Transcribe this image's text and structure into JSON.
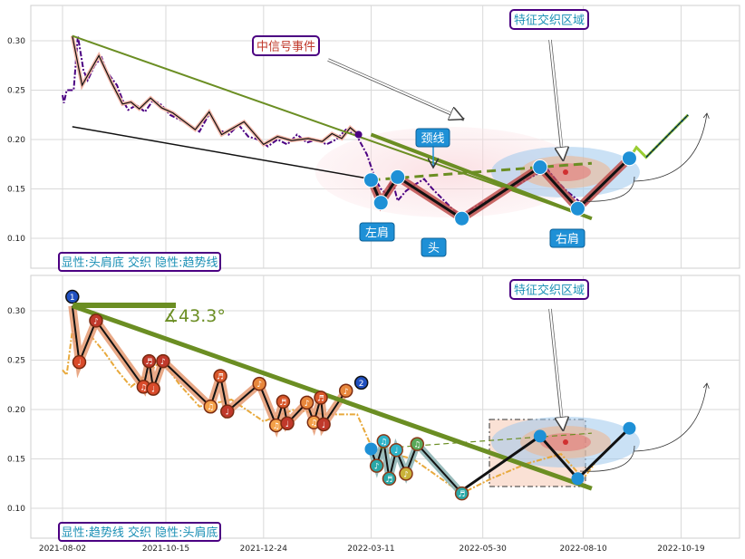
{
  "chart_data": [
    {
      "type": "line",
      "panel": "top",
      "ylim": [
        0.07,
        0.34
      ],
      "yticks": [
        0.1,
        0.15,
        0.2,
        0.25,
        0.3
      ],
      "ytick_labels": [
        "0.10",
        "0.15",
        "0.20",
        "0.25",
        "0.30"
      ],
      "grid": true,
      "series": [
        {
          "style": "dash-dot",
          "color": "#4b0082",
          "points": [
            [
              "2021-08-02",
              0.245
            ],
            [
              "2021-08-03",
              0.237
            ],
            [
              "2021-08-05",
              0.25
            ],
            [
              "2021-08-10",
              0.25
            ],
            [
              "2021-08-13",
              0.305
            ],
            [
              "2021-08-17",
              0.27
            ],
            [
              "2021-08-20",
              0.26
            ],
            [
              "2021-08-25",
              0.275
            ],
            [
              "2021-08-30",
              0.283
            ],
            [
              "2021-09-03",
              0.268
            ],
            [
              "2021-09-10",
              0.255
            ],
            [
              "2021-09-14",
              0.24
            ],
            [
              "2021-09-18",
              0.23
            ],
            [
              "2021-09-24",
              0.235
            ],
            [
              "2021-09-30",
              0.228
            ],
            [
              "2021-10-06",
              0.24
            ],
            [
              "2021-10-12",
              0.235
            ],
            [
              "2021-10-18",
              0.225
            ],
            [
              "2021-10-25",
              0.22
            ],
            [
              "2021-11-01",
              0.215
            ],
            [
              "2021-11-08",
              0.208
            ],
            [
              "2021-11-15",
              0.226
            ],
            [
              "2021-11-22",
              0.21
            ],
            [
              "2021-11-29",
              0.205
            ],
            [
              "2021-12-06",
              0.215
            ],
            [
              "2021-12-13",
              0.203
            ],
            [
              "2021-12-20",
              0.2
            ],
            [
              "2021-12-27",
              0.193
            ],
            [
              "2022-01-03",
              0.2
            ],
            [
              "2022-01-10",
              0.195
            ],
            [
              "2022-01-17",
              0.205
            ],
            [
              "2022-01-24",
              0.197
            ],
            [
              "2022-01-31",
              0.2
            ],
            [
              "2022-02-07",
              0.195
            ],
            [
              "2022-02-14",
              0.2
            ],
            [
              "2022-02-21",
              0.21
            ],
            [
              "2022-03-01",
              0.203
            ],
            [
              "2022-03-08",
              0.185
            ],
            [
              "2022-03-14",
              0.16
            ],
            [
              "2022-03-18",
              0.15
            ],
            [
              "2022-03-22",
              0.145
            ],
            [
              "2022-03-26",
              0.16
            ],
            [
              "2022-03-30",
              0.138
            ],
            [
              "2022-04-05",
              0.148
            ],
            [
              "2022-04-12",
              0.155
            ],
            [
              "2022-04-18",
              0.16
            ],
            [
              "2022-04-24",
              0.15
            ],
            [
              "2022-05-01",
              0.14
            ],
            [
              "2022-05-08",
              0.13
            ],
            [
              "2022-05-15",
              0.121
            ],
            [
              "2022-05-20",
              0.128
            ],
            [
              "2022-05-28",
              0.135
            ],
            [
              "2022-06-05",
              0.14
            ],
            [
              "2022-06-15",
              0.148
            ],
            [
              "2022-06-25",
              0.155
            ],
            [
              "2022-07-05",
              0.163
            ],
            [
              "2022-07-15",
              0.17
            ],
            [
              "2022-07-22",
              0.158
            ],
            [
              "2022-07-29",
              0.148
            ],
            [
              "2022-08-05",
              0.14
            ],
            [
              "2022-08-10",
              0.133
            ],
            [
              "2022-08-15",
              0.14
            ]
          ]
        },
        {
          "style": "solid-black-with-pink-halo",
          "color": "#111111",
          "points": [
            [
              "2021-08-09",
              0.305
            ],
            [
              "2021-08-16",
              0.255
            ],
            [
              "2021-08-28",
              0.285
            ],
            [
              "2021-09-06",
              0.258
            ],
            [
              "2021-09-14",
              0.236
            ],
            [
              "2021-09-20",
              0.238
            ],
            [
              "2021-09-26",
              0.231
            ],
            [
              "2021-10-04",
              0.242
            ],
            [
              "2021-10-12",
              0.232
            ],
            [
              "2021-10-20",
              0.227
            ],
            [
              "2021-11-05",
              0.21
            ],
            [
              "2021-11-15",
              0.228
            ],
            [
              "2021-11-24",
              0.205
            ],
            [
              "2021-12-10",
              0.218
            ],
            [
              "2021-12-24",
              0.195
            ],
            [
              "2022-01-03",
              0.203
            ],
            [
              "2022-01-13",
              0.199
            ],
            [
              "2022-01-25",
              0.201
            ],
            [
              "2022-02-04",
              0.198
            ],
            [
              "2022-02-11",
              0.206
            ],
            [
              "2022-02-18",
              0.201
            ],
            [
              "2022-02-24",
              0.212
            ],
            [
              "2022-03-02",
              0.205
            ]
          ]
        },
        {
          "style": "thick-red-pattern",
          "color": "#b22222",
          "points": [
            [
              "2022-03-11",
              0.159
            ],
            [
              "2022-03-18",
              0.136
            ],
            [
              "2022-03-30",
              0.162
            ],
            [
              "2022-05-15",
              0.12
            ],
            [
              "2022-07-10",
              0.172
            ],
            [
              "2022-08-06",
              0.13
            ],
            [
              "2022-09-12",
              0.181
            ]
          ]
        },
        {
          "style": "light-green-with-blue-dash",
          "color": "#9acd32",
          "points": [
            [
              "2022-09-12",
              0.181
            ],
            [
              "2022-09-17",
              0.192
            ],
            [
              "2022-09-24",
              0.182
            ],
            [
              "2022-10-24",
              0.225
            ]
          ]
        }
      ],
      "trendline": [
        [
          "2021-08-09",
          0.305
        ],
        [
          "2022-08-16",
          0.12
        ]
      ],
      "neckline": [
        [
          "2022-03-11",
          0.159
        ],
        [
          "2022-08-16",
          0.176
        ]
      ],
      "annotations": {
        "mid_signal": "中信号事件",
        "feature_region": "特征交织区域",
        "neckline": "颈线",
        "left_shoulder": "左肩",
        "head": "头",
        "right_shoulder": "右肩",
        "corner_label": "显性:头肩底 交织 隐性:趋势线"
      }
    },
    {
      "type": "line",
      "panel": "bottom",
      "ylim": [
        0.07,
        0.34
      ],
      "yticks": [
        0.1,
        0.15,
        0.2,
        0.25,
        0.3
      ],
      "ytick_labels": [
        "0.10",
        "0.15",
        "0.20",
        "0.25",
        "0.30"
      ],
      "xticks": [
        "2021-08-02",
        "2021-10-15",
        "2021-12-24",
        "2022-03-11",
        "2022-05-30",
        "2022-08-10",
        "2022-10-19"
      ],
      "grid": true,
      "angle_label": "∡43.3°",
      "series": [
        {
          "style": "dash-dot-orange",
          "color": "#e8a93c",
          "points": [
            [
              "2021-08-02",
              0.24
            ],
            [
              "2021-08-05",
              0.235
            ],
            [
              "2021-08-09",
              0.28
            ],
            [
              "2021-08-15",
              0.25
            ],
            [
              "2021-08-22",
              0.275
            ],
            [
              "2021-09-01",
              0.258
            ],
            [
              "2021-09-10",
              0.24
            ],
            [
              "2021-09-20",
              0.223
            ],
            [
              "2021-10-01",
              0.235
            ],
            [
              "2021-10-12",
              0.25
            ],
            [
              "2021-10-25",
              0.225
            ],
            [
              "2021-11-08",
              0.203
            ],
            [
              "2021-12-01",
              0.21
            ],
            [
              "2021-12-24",
              0.188
            ],
            [
              "2022-01-15",
              0.2
            ],
            [
              "2022-02-05",
              0.195
            ],
            [
              "2022-03-01",
              0.195
            ],
            [
              "2022-03-12",
              0.16
            ],
            [
              "2022-04-10",
              0.15
            ],
            [
              "2022-05-15",
              0.115
            ],
            [
              "2022-06-05",
              0.13
            ],
            [
              "2022-06-30",
              0.145
            ],
            [
              "2022-07-25",
              0.155
            ],
            [
              "2022-08-10",
              0.13
            ],
            [
              "2022-08-18",
              0.145
            ]
          ]
        },
        {
          "style": "thick-black-with-orange-halo",
          "color": "#111111",
          "points": [
            [
              "2021-08-09",
              0.305
            ],
            [
              "2021-08-14",
              0.248
            ],
            [
              "2021-08-26",
              0.29
            ],
            [
              "2021-09-29",
              0.223
            ],
            [
              "2021-10-03",
              0.249
            ],
            [
              "2021-10-06",
              0.221
            ],
            [
              "2021-10-13",
              0.249
            ],
            [
              "2021-11-16",
              0.203
            ],
            [
              "2021-11-23",
              0.234
            ],
            [
              "2021-11-28",
              0.198
            ],
            [
              "2021-12-21",
              0.226
            ],
            [
              "2022-01-02",
              0.184
            ],
            [
              "2022-01-07",
              0.208
            ],
            [
              "2022-01-10",
              0.186
            ],
            [
              "2022-01-24",
              0.207
            ],
            [
              "2022-01-29",
              0.187
            ],
            [
              "2022-02-03",
              0.212
            ],
            [
              "2022-02-05",
              0.185
            ],
            [
              "2022-02-21",
              0.219
            ]
          ]
        },
        {
          "style": "grey-teal",
          "color": "#6e8b8b",
          "points": [
            [
              "2022-03-11",
              0.16
            ],
            [
              "2022-03-15",
              0.143
            ],
            [
              "2022-03-20",
              0.168
            ],
            [
              "2022-03-24",
              0.13
            ],
            [
              "2022-03-29",
              0.159
            ],
            [
              "2022-04-05",
              0.135
            ],
            [
              "2022-04-13",
              0.165
            ],
            [
              "2022-05-15",
              0.115
            ]
          ]
        },
        {
          "style": "solid-black",
          "color": "#111111",
          "points": [
            [
              "2022-05-17",
              0.12
            ],
            [
              "2022-07-10",
              0.173
            ],
            [
              "2022-08-06",
              0.13
            ],
            [
              "2022-09-12",
              0.181
            ]
          ]
        }
      ],
      "trendline": [
        [
          "2021-08-09",
          0.305
        ],
        [
          "2022-08-16",
          0.12
        ]
      ],
      "markers": {
        "circle_numbers": [
          "1",
          "2"
        ],
        "note_glyphs": [
          "♩",
          "♪",
          "♫",
          "♬"
        ]
      },
      "annotations": {
        "feature_region": "特征交织区域",
        "corner_label": "显性:趋势线 交织 隐性:头肩底"
      }
    }
  ],
  "colors": {
    "trend_green": "#6b8e23",
    "tag_blue": "#1e90d6",
    "frame_purple": "#4b0082",
    "label_teal": "#1a8fb5",
    "signal_red": "#c0392b"
  }
}
